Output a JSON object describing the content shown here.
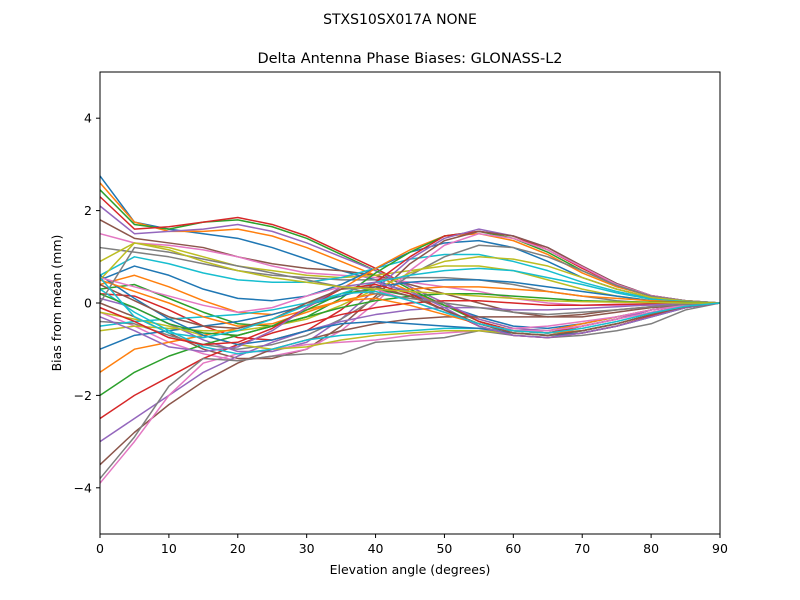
{
  "chart_data": {
    "type": "line",
    "suptitle": "STXS10SX017A    NONE",
    "title": "Delta Antenna Phase Biases: GLONASS-L2",
    "xlabel": "Elevation angle (degrees)",
    "ylabel": "Bias from mean (mm)",
    "xlim": [
      0,
      90
    ],
    "ylim": [
      -5,
      5
    ],
    "xticks": [
      0,
      10,
      20,
      30,
      40,
      50,
      60,
      70,
      80,
      90
    ],
    "yticks": [
      -4,
      -2,
      0,
      2,
      4
    ],
    "grid": false,
    "legend": "none",
    "x": [
      0,
      5,
      10,
      15,
      20,
      25,
      30,
      35,
      40,
      45,
      50,
      55,
      60,
      65,
      70,
      75,
      80,
      85,
      90
    ],
    "colors": [
      "#1f77b4",
      "#ff7f0e",
      "#2ca02c",
      "#d62728",
      "#9467bd",
      "#8c564b",
      "#e377c2",
      "#7f7f7f",
      "#bcbd22",
      "#17becf"
    ],
    "series": [
      {
        "values": [
          2.75,
          1.75,
          1.6,
          1.5,
          1.4,
          1.2,
          0.95,
          0.7,
          0.5,
          0.2,
          -0.05,
          -0.3,
          -0.5,
          -0.55,
          -0.45,
          -0.3,
          -0.15,
          -0.05,
          0
        ]
      },
      {
        "values": [
          2.6,
          1.75,
          1.55,
          1.55,
          1.6,
          1.45,
          1.2,
          0.9,
          0.6,
          0.25,
          -0.05,
          -0.35,
          -0.55,
          -0.6,
          -0.45,
          -0.3,
          -0.15,
          -0.05,
          0
        ]
      },
      {
        "values": [
          2.45,
          1.7,
          1.6,
          1.75,
          1.8,
          1.65,
          1.4,
          1.05,
          0.7,
          0.3,
          -0.05,
          -0.4,
          -0.6,
          -0.65,
          -0.5,
          -0.35,
          -0.15,
          -0.05,
          0
        ]
      },
      {
        "values": [
          2.3,
          1.6,
          1.65,
          1.75,
          1.85,
          1.7,
          1.45,
          1.1,
          0.75,
          0.35,
          0.0,
          -0.4,
          -0.6,
          -0.65,
          -0.5,
          -0.35,
          -0.15,
          -0.05,
          0
        ]
      },
      {
        "values": [
          2.1,
          1.5,
          1.55,
          1.6,
          1.7,
          1.55,
          1.3,
          1.0,
          0.7,
          0.35,
          0.0,
          -0.35,
          -0.55,
          -0.6,
          -0.5,
          -0.35,
          -0.15,
          -0.05,
          0
        ]
      },
      {
        "values": [
          1.8,
          1.4,
          1.3,
          1.2,
          1.0,
          0.85,
          0.75,
          0.7,
          0.6,
          0.4,
          0.2,
          0.0,
          -0.2,
          -0.3,
          -0.3,
          -0.2,
          -0.1,
          -0.05,
          0
        ]
      },
      {
        "values": [
          1.5,
          1.3,
          1.25,
          1.15,
          1.0,
          0.8,
          0.65,
          0.6,
          0.55,
          0.45,
          0.35,
          0.25,
          0.1,
          0.0,
          -0.05,
          -0.05,
          -0.05,
          -0.02,
          0
        ]
      },
      {
        "values": [
          1.2,
          1.1,
          1.0,
          0.85,
          0.7,
          0.6,
          0.55,
          0.5,
          0.5,
          0.55,
          0.55,
          0.5,
          0.4,
          0.25,
          0.15,
          0.05,
          0.0,
          0.0,
          0
        ]
      },
      {
        "values": [
          0.9,
          1.3,
          1.2,
          1.0,
          0.8,
          0.7,
          0.6,
          0.55,
          0.6,
          0.7,
          0.8,
          0.8,
          0.7,
          0.5,
          0.3,
          0.15,
          0.05,
          0.02,
          0
        ]
      },
      {
        "values": [
          0.6,
          1.0,
          0.85,
          0.65,
          0.5,
          0.45,
          0.45,
          0.55,
          0.75,
          0.95,
          1.05,
          1.05,
          0.9,
          0.7,
          0.45,
          0.25,
          0.1,
          0.03,
          0
        ]
      },
      {
        "values": [
          0.5,
          0.8,
          0.6,
          0.3,
          0.1,
          0.05,
          0.15,
          0.4,
          0.75,
          1.1,
          1.3,
          1.35,
          1.2,
          0.9,
          0.55,
          0.3,
          0.12,
          0.04,
          0
        ]
      },
      {
        "values": [
          0.4,
          0.6,
          0.35,
          0.05,
          -0.2,
          -0.25,
          -0.05,
          0.3,
          0.75,
          1.15,
          1.45,
          1.5,
          1.35,
          1.05,
          0.65,
          0.35,
          0.15,
          0.05,
          0
        ]
      },
      {
        "values": [
          0.3,
          0.4,
          0.1,
          -0.2,
          -0.45,
          -0.5,
          -0.3,
          0.1,
          0.65,
          1.1,
          1.45,
          1.55,
          1.4,
          1.1,
          0.7,
          0.38,
          0.15,
          0.05,
          0
        ]
      },
      {
        "values": [
          0.2,
          0.15,
          -0.15,
          -0.5,
          -0.75,
          -0.8,
          -0.6,
          -0.15,
          0.45,
          1.0,
          1.45,
          1.55,
          1.45,
          1.15,
          0.75,
          0.4,
          0.16,
          0.05,
          0
        ]
      },
      {
        "values": [
          0.1,
          -0.1,
          -0.45,
          -0.8,
          -1.05,
          -1.05,
          -0.85,
          -0.35,
          0.3,
          0.95,
          1.4,
          1.6,
          1.45,
          1.2,
          0.8,
          0.42,
          0.16,
          0.05,
          0
        ]
      },
      {
        "values": [
          0.0,
          -0.3,
          -0.65,
          -1.0,
          -1.2,
          -1.2,
          -1.0,
          -0.5,
          0.15,
          0.85,
          1.35,
          1.55,
          1.45,
          1.2,
          0.8,
          0.42,
          0.16,
          0.05,
          0
        ]
      },
      {
        "values": [
          -0.2,
          -0.5,
          -0.85,
          -1.1,
          -1.25,
          -1.15,
          -1.0,
          -0.6,
          0.0,
          0.7,
          1.25,
          1.5,
          1.4,
          1.15,
          0.78,
          0.4,
          0.16,
          0.05,
          0
        ]
      },
      {
        "values": [
          -0.4,
          -0.45,
          -0.7,
          -0.9,
          -1.0,
          -0.9,
          -0.7,
          -0.35,
          0.1,
          0.6,
          1.0,
          1.25,
          1.2,
          1.0,
          0.7,
          0.38,
          0.15,
          0.05,
          0
        ]
      },
      {
        "values": [
          -0.6,
          -0.5,
          -0.55,
          -0.6,
          -0.6,
          -0.5,
          -0.35,
          -0.05,
          0.3,
          0.65,
          0.9,
          1.0,
          0.95,
          0.8,
          0.55,
          0.3,
          0.12,
          0.04,
          0
        ]
      },
      {
        "values": [
          -0.5,
          -0.4,
          -0.35,
          -0.3,
          -0.25,
          -0.15,
          0.0,
          0.2,
          0.45,
          0.6,
          0.7,
          0.75,
          0.7,
          0.55,
          0.4,
          0.22,
          0.08,
          0.03,
          0
        ]
      },
      {
        "values": [
          -1.0,
          -0.7,
          -0.6,
          -0.5,
          -0.4,
          -0.25,
          -0.05,
          0.15,
          0.35,
          0.45,
          0.5,
          0.5,
          0.45,
          0.35,
          0.25,
          0.15,
          0.05,
          0.02,
          0
        ]
      },
      {
        "values": [
          -1.5,
          -1.0,
          -0.85,
          -0.7,
          -0.55,
          -0.35,
          -0.15,
          0.05,
          0.2,
          0.3,
          0.35,
          0.35,
          0.3,
          0.25,
          0.15,
          0.1,
          0.05,
          0.02,
          0
        ]
      },
      {
        "values": [
          -2.0,
          -1.5,
          -1.15,
          -0.9,
          -0.7,
          -0.5,
          -0.3,
          -0.1,
          0.05,
          0.15,
          0.2,
          0.2,
          0.15,
          0.1,
          0.05,
          0.03,
          0.02,
          0.01,
          0
        ]
      },
      {
        "values": [
          -2.5,
          -2.0,
          -1.6,
          -1.2,
          -0.9,
          -0.65,
          -0.45,
          -0.25,
          -0.1,
          0.0,
          0.05,
          0.05,
          0.0,
          -0.05,
          -0.05,
          -0.03,
          -0.02,
          -0.01,
          0
        ]
      },
      {
        "values": [
          -3.0,
          -2.5,
          -2.0,
          -1.5,
          -1.15,
          -0.85,
          -0.6,
          -0.4,
          -0.25,
          -0.15,
          -0.1,
          -0.1,
          -0.15,
          -0.15,
          -0.12,
          -0.08,
          -0.04,
          -0.02,
          0
        ]
      },
      {
        "values": [
          -3.5,
          -2.8,
          -2.2,
          -1.7,
          -1.3,
          -1.0,
          -0.8,
          -0.6,
          -0.45,
          -0.35,
          -0.3,
          -0.3,
          -0.3,
          -0.3,
          -0.25,
          -0.15,
          -0.08,
          -0.03,
          0
        ]
      },
      {
        "values": [
          -3.9,
          -3.0,
          -2.0,
          -1.3,
          -1.1,
          -1.0,
          -0.9,
          -0.85,
          -0.8,
          -0.7,
          -0.65,
          -0.6,
          -0.55,
          -0.5,
          -0.4,
          -0.3,
          -0.15,
          -0.05,
          0
        ]
      },
      {
        "values": [
          -3.8,
          -2.9,
          -1.8,
          -1.2,
          -1.25,
          -1.15,
          -1.1,
          -1.1,
          -0.85,
          -0.8,
          -0.75,
          -0.6,
          -0.7,
          -0.75,
          -0.7,
          -0.6,
          -0.45,
          -0.15,
          0
        ]
      },
      {
        "values": [
          -0.2,
          -0.35,
          -0.5,
          -0.7,
          -0.9,
          -1.0,
          -0.95,
          -0.8,
          -0.7,
          -0.65,
          -0.6,
          -0.6,
          -0.65,
          -0.7,
          -0.65,
          -0.5,
          -0.3,
          -0.1,
          0
        ]
      },
      {
        "values": [
          0.3,
          -0.2,
          -0.6,
          -0.95,
          -1.1,
          -1.0,
          -0.8,
          -0.7,
          -0.65,
          -0.6,
          -0.55,
          -0.55,
          -0.6,
          -0.65,
          -0.6,
          -0.45,
          -0.25,
          -0.1,
          0
        ]
      },
      {
        "values": [
          0.6,
          0.1,
          -0.35,
          -0.7,
          -0.9,
          -0.8,
          -0.6,
          -0.45,
          -0.4,
          -0.45,
          -0.5,
          -0.55,
          -0.65,
          -0.7,
          -0.65,
          -0.5,
          -0.3,
          -0.1,
          0
        ]
      },
      {
        "values": [
          0.5,
          0.25,
          0.0,
          -0.3,
          -0.5,
          -0.45,
          -0.2,
          0.05,
          0.1,
          -0.05,
          -0.25,
          -0.45,
          -0.6,
          -0.65,
          -0.6,
          -0.45,
          -0.25,
          -0.08,
          0
        ]
      },
      {
        "values": [
          0.2,
          -0.1,
          -0.45,
          -0.65,
          -0.7,
          -0.5,
          -0.15,
          0.2,
          0.3,
          0.15,
          -0.15,
          -0.45,
          -0.65,
          -0.7,
          -0.6,
          -0.45,
          -0.25,
          -0.08,
          0
        ]
      },
      {
        "values": [
          -0.1,
          -0.4,
          -0.75,
          -0.9,
          -0.85,
          -0.55,
          -0.1,
          0.3,
          0.4,
          0.2,
          -0.15,
          -0.5,
          -0.7,
          -0.75,
          -0.65,
          -0.5,
          -0.28,
          -0.1,
          0
        ]
      },
      {
        "values": [
          -0.3,
          -0.6,
          -0.95,
          -1.05,
          -0.95,
          -0.6,
          -0.1,
          0.35,
          0.45,
          0.25,
          -0.1,
          -0.5,
          -0.7,
          -0.75,
          -0.65,
          -0.5,
          -0.3,
          -0.1,
          0
        ]
      },
      {
        "values": [
          0.4,
          0.05,
          -0.3,
          -0.5,
          -0.55,
          -0.35,
          0.0,
          0.3,
          0.35,
          0.15,
          -0.15,
          -0.45,
          -0.65,
          -0.7,
          -0.6,
          -0.45,
          -0.25,
          -0.08,
          0
        ]
      },
      {
        "values": [
          0.55,
          0.35,
          0.15,
          -0.05,
          -0.2,
          -0.1,
          0.15,
          0.35,
          0.3,
          0.05,
          -0.2,
          -0.45,
          -0.6,
          -0.6,
          -0.5,
          -0.35,
          -0.2,
          -0.06,
          0
        ]
      },
      {
        "values": [
          0.0,
          1.2,
          1.1,
          0.95,
          0.8,
          0.65,
          0.5,
          0.35,
          0.2,
          0.1,
          0.0,
          -0.1,
          -0.2,
          -0.25,
          -0.2,
          -0.15,
          -0.08,
          -0.03,
          0
        ]
      },
      {
        "values": [
          0.5,
          1.3,
          1.15,
          0.9,
          0.7,
          0.55,
          0.45,
          0.35,
          0.3,
          0.25,
          0.2,
          0.15,
          0.1,
          0.05,
          0.03,
          0.02,
          0.01,
          0.0,
          0
        ]
      },
      {
        "values": [
          0.55,
          -0.3,
          -0.65,
          -0.75,
          -0.6,
          -0.35,
          -0.05,
          0.2,
          0.25,
          0.05,
          -0.2,
          -0.45,
          -0.6,
          -0.65,
          -0.55,
          -0.4,
          -0.22,
          -0.07,
          0
        ]
      }
    ]
  }
}
